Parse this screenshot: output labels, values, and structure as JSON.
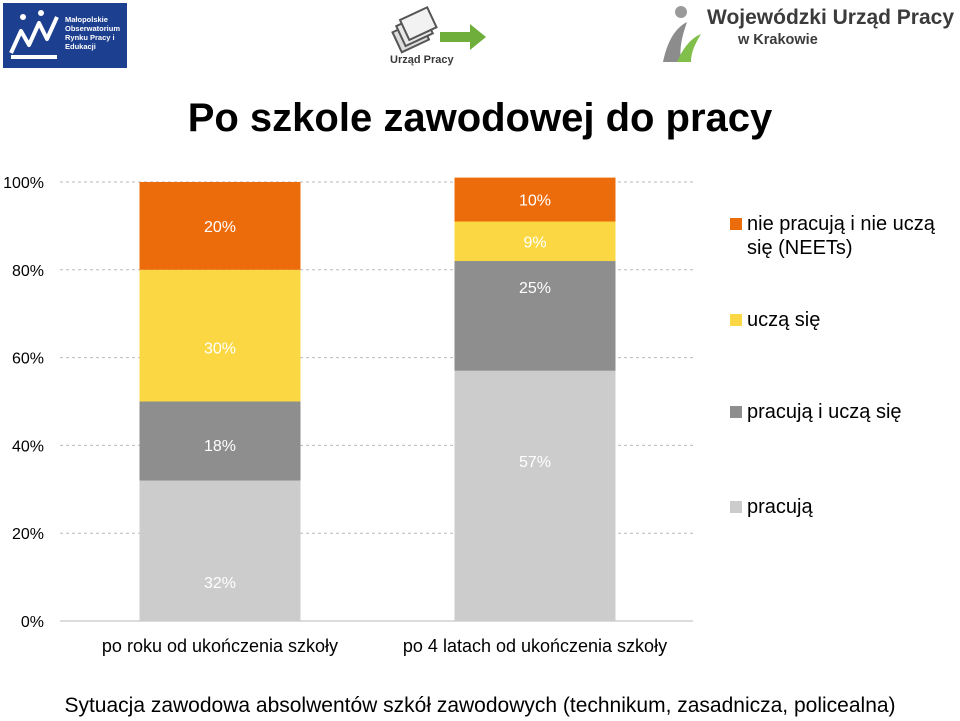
{
  "logos": {
    "left": {
      "text": "Małopolskie Obserwatorium Rynku Pracy i Edukacji"
    },
    "middle": {
      "text": "Urząd Pracy"
    },
    "right": {
      "line1": "Wojewódzki Urząd Pracy",
      "line2": "w Krakowie"
    }
  },
  "title": "Po szkole zawodowej do pracy",
  "footer": "Sytuacja zawodowa absolwentów szkół zawodowych (technikum, zasadnicza, policealna)",
  "chart_data": {
    "type": "bar",
    "stacked": true,
    "categories": [
      "po roku od ukończenia szkoły",
      "po 4 latach od ukończenia szkoły"
    ],
    "y_ticks": [
      "0%",
      "20%",
      "40%",
      "60%",
      "80%",
      "100%"
    ],
    "ylim": [
      0,
      100
    ],
    "grid": true,
    "legend_position": "right",
    "series": [
      {
        "name": "pracują",
        "values": [
          32,
          57
        ],
        "labels": [
          "32%",
          "57%"
        ],
        "color": "#cccccc"
      },
      {
        "name": "pracują i uczą się",
        "values": [
          18,
          25
        ],
        "labels": [
          "18%",
          "25%"
        ],
        "color": "#8e8e8e"
      },
      {
        "name": "uczą się",
        "values": [
          30,
          9
        ],
        "labels": [
          "30%",
          "9%"
        ],
        "color": "#fbd843"
      },
      {
        "name": "nie pracują i nie uczą się (NEETs)",
        "values": [
          20,
          10
        ],
        "labels": [
          "20%",
          "10%"
        ],
        "color": "#ec6c0b"
      }
    ]
  }
}
